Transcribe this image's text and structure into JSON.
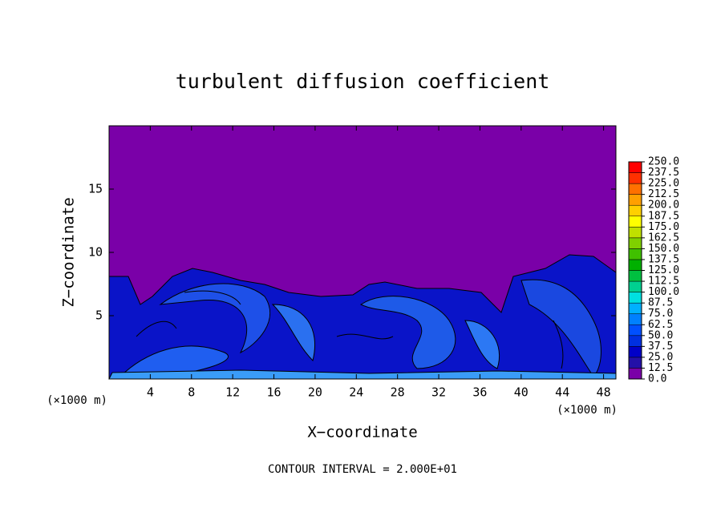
{
  "chart_data": {
    "type": "contour",
    "title": "turbulent diffusion coefficient",
    "xlabel": "X−coordinate",
    "ylabel": "Z−coordinate",
    "x_unit_label": "(×1000 m)",
    "footer": "CONTOUR INTERVAL = 2.000E+01",
    "xlim": [
      0,
      49.2
    ],
    "ylim": [
      0,
      20
    ],
    "xticks": [
      4,
      8,
      12,
      16,
      20,
      24,
      28,
      32,
      36,
      40,
      44,
      48
    ],
    "yticks": [
      5,
      10,
      15
    ],
    "colorbar": {
      "ticks": [
        {
          "value": 0,
          "label": "0.0"
        },
        {
          "value": 12.5,
          "label": "12.5"
        },
        {
          "value": 25,
          "label": "25.0"
        },
        {
          "value": 37.5,
          "label": "37.5"
        },
        {
          "value": 50,
          "label": "50.0"
        },
        {
          "value": 62.5,
          "label": "62.5"
        },
        {
          "value": 75,
          "label": "75.0"
        },
        {
          "value": 87.5,
          "label": "87.5"
        },
        {
          "value": 100,
          "label": "100.0"
        },
        {
          "value": 112.5,
          "label": "112.5"
        },
        {
          "value": 125,
          "label": "125.0"
        },
        {
          "value": 137.5,
          "label": "137.5"
        },
        {
          "value": 150,
          "label": "150.0"
        },
        {
          "value": 162.5,
          "label": "162.5"
        },
        {
          "value": 175,
          "label": "175.0"
        },
        {
          "value": 187.5,
          "label": "187.5"
        },
        {
          "value": 200,
          "label": "200.0"
        },
        {
          "value": 212.5,
          "label": "212.5"
        },
        {
          "value": 225,
          "label": "225.0"
        },
        {
          "value": 237.5,
          "label": "237.5"
        },
        {
          "value": 250,
          "label": "250.0"
        }
      ],
      "colors": [
        "#7a00a8",
        "#2410a8",
        "#0000c8",
        "#0030e0",
        "#0050ff",
        "#0080ff",
        "#00b0ff",
        "#00e0e0",
        "#00d090",
        "#00c040",
        "#00b000",
        "#40c000",
        "#80d000",
        "#c0e000",
        "#ffff00",
        "#ffd000",
        "#ffa000",
        "#ff7000",
        "#ff3000",
        "#ff0000"
      ]
    }
  }
}
